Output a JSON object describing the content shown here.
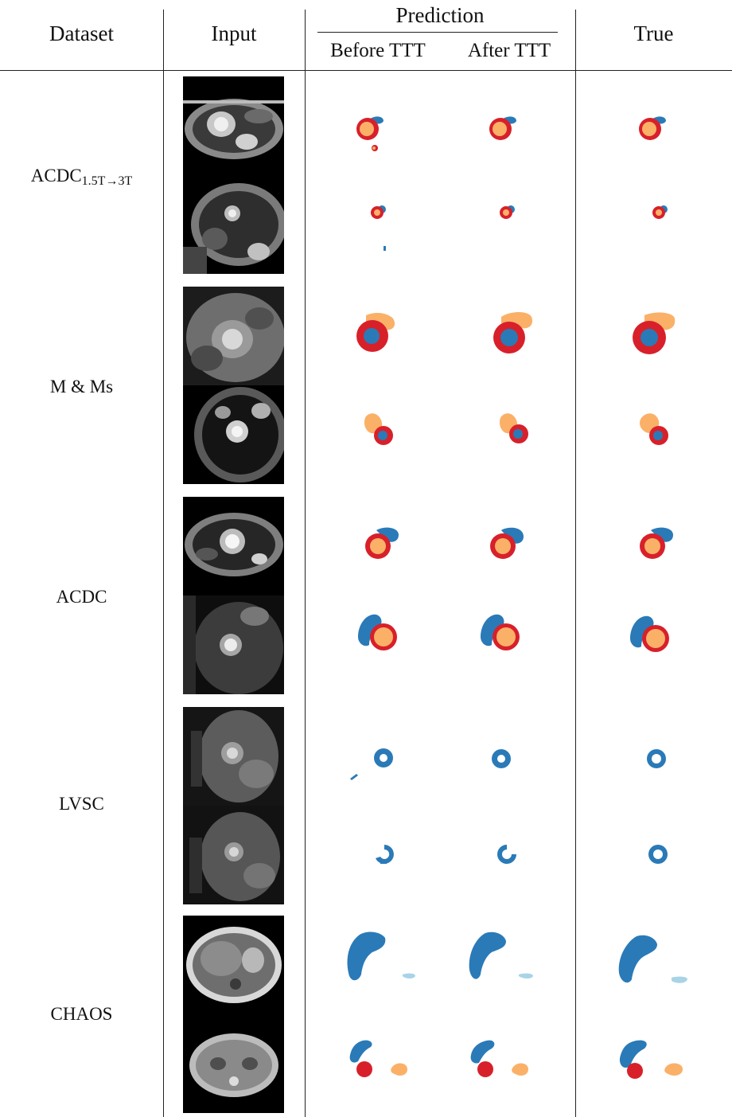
{
  "header": {
    "dataset": "Dataset",
    "input": "Input",
    "prediction": "Prediction",
    "before_ttt": "Before TTT",
    "after_ttt": "After TTT",
    "true": "True"
  },
  "rows": [
    {
      "dataset": "ACDC",
      "subscript": "1.5T→3T"
    },
    {
      "dataset": "M & Ms",
      "subscript": ""
    },
    {
      "dataset": "ACDC",
      "subscript": ""
    },
    {
      "dataset": "LVSC",
      "subscript": ""
    },
    {
      "dataset": "CHAOS",
      "subscript": ""
    }
  ],
  "colors": {
    "blue": "#2a7ab8",
    "red": "#d8202a",
    "orange": "#fbb068",
    "light_blue": "#a8d4e6",
    "rule": "#222222"
  },
  "icons": [
    "mri-input-image",
    "segmentation-mask"
  ]
}
